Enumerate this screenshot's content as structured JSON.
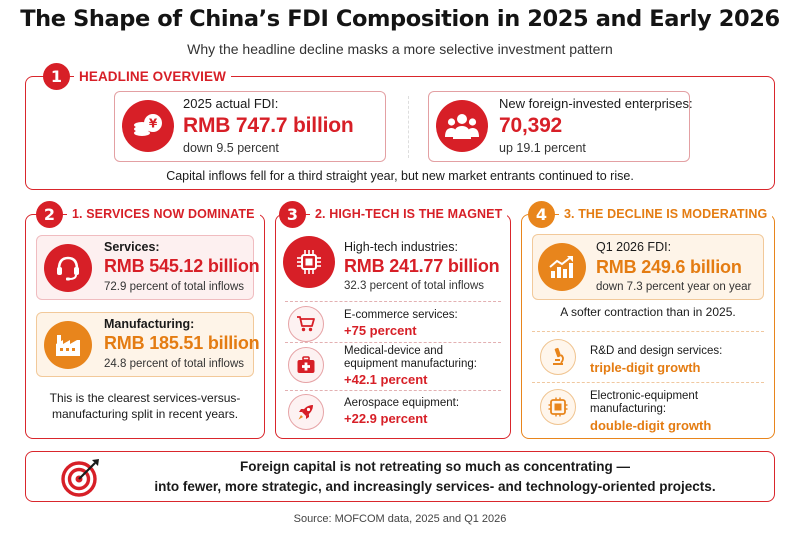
{
  "title": "The Shape of China’s FDI Composition in 2025 and Early 2026",
  "subtitle": "Why the headline decline masks a more selective investment pattern",
  "headline": {
    "number": "1",
    "heading": "HEADLINE OVERVIEW",
    "fdi": {
      "label": "2025 actual FDI:",
      "value": "RMB 747.7 billion",
      "change": "down 9.5 percent",
      "icon": "coin-stack-yuan-icon"
    },
    "enterprises": {
      "label": "New foreign-invested enterprises:",
      "value": "70,392",
      "change": "up 19.1 percent",
      "icon": "people-group-icon"
    },
    "note": "Capital inflows fell for a third straight year, but new market entrants continued to rise."
  },
  "services": {
    "number": "2",
    "heading": "1. SERVICES NOW DOMINATE",
    "services_card": {
      "label": "Services:",
      "value": "RMB 545.12 billion",
      "share": "72.9 percent of total inflows",
      "icon": "headset-icon"
    },
    "manufacturing_card": {
      "label": "Manufacturing:",
      "value": "RMB 185.51 billion",
      "share": "24.8 percent of total inflows",
      "icon": "factory-icon"
    },
    "note_line1": "This is the clearest services-versus-",
    "note_line2": "manufacturing split in recent years."
  },
  "hightech": {
    "number": "3",
    "heading": "2. HIGH-TECH IS THE MAGNET",
    "main": {
      "label": "High-tech industries:",
      "value": "RMB 241.77 billion",
      "share": "32.3 percent of total inflows",
      "icon": "chip-icon"
    },
    "items": [
      {
        "label_line1": "E-commerce services:",
        "label_line2": "",
        "value": "+75 percent",
        "icon": "shopping-cart-icon"
      },
      {
        "label_line1": "Medical-device and",
        "label_line2": "equipment manufacturing:",
        "value": "+42.1 percent",
        "icon": "medical-kit-icon"
      },
      {
        "label_line1": "Aerospace equipment:",
        "label_line2": "",
        "value": "+22.9 percent",
        "icon": "rocket-icon"
      }
    ]
  },
  "decline": {
    "number": "4",
    "heading": "3. THE DECLINE IS MODERATING",
    "q1": {
      "label": "Q1 2026 FDI:",
      "value": "RMB 249.6 billion",
      "change": "down 7.3 percent year on year",
      "icon": "growth-chart-icon"
    },
    "note": "A softer contraction than in 2025.",
    "items": [
      {
        "label_line1": "R&D and design services:",
        "label_line2": "",
        "value": "triple-digit growth",
        "icon": "microscope-icon"
      },
      {
        "label_line1": "Electronic-equipment",
        "label_line2": "manufacturing:",
        "value": "double-digit growth",
        "icon": "circuit-board-icon"
      }
    ]
  },
  "conclusion": {
    "line1": "Foreign capital is not retreating so much as concentrating —",
    "line2": "into fewer, more strategic, and increasingly services- and technology-oriented projects.",
    "icon": "target-arrow-icon"
  },
  "source": "Source: MOFCOM data, 2025 and Q1 2026",
  "colors": {
    "red": "#d71f27",
    "orange": "#e8851c",
    "pink_bg": "#fdf0f0",
    "peach_bg": "#fef4e8"
  }
}
